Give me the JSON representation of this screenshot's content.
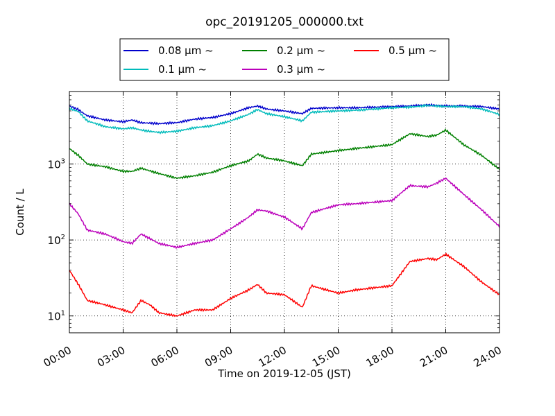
{
  "chart_data": {
    "type": "line",
    "title": "opc_20191205_000000.txt",
    "xlabel": "Time on 2019-12-05 (JST)",
    "ylabel": "Count / L",
    "x_unit": "hour of day",
    "xlim": [
      0,
      24
    ],
    "ylim": [
      6,
      9000
    ],
    "yscale": "log",
    "grid": true,
    "legend_position": "top-center",
    "x_ticks": [
      {
        "value": 0,
        "label": "00:00"
      },
      {
        "value": 3,
        "label": "03:00"
      },
      {
        "value": 6,
        "label": "06:00"
      },
      {
        "value": 9,
        "label": "09:00"
      },
      {
        "value": 12,
        "label": "12:00"
      },
      {
        "value": 15,
        "label": "15:00"
      },
      {
        "value": 18,
        "label": "18:00"
      },
      {
        "value": 21,
        "label": "21:00"
      },
      {
        "value": 24,
        "label": "24:00"
      }
    ],
    "y_ticks": [
      {
        "value": 10,
        "base": "10",
        "exp": "1"
      },
      {
        "value": 100,
        "base": "10",
        "exp": "2"
      },
      {
        "value": 1000,
        "base": "10",
        "exp": "3"
      }
    ],
    "series": [
      {
        "name": "0.08 μm ~",
        "color": "#0000cc",
        "x": [
          0,
          0.5,
          1,
          2,
          3,
          3.5,
          4,
          5,
          6,
          7,
          8,
          9,
          10,
          10.5,
          11,
          12,
          13,
          13.5,
          15,
          16,
          18,
          19,
          20,
          21,
          22,
          23,
          24
        ],
        "values": [
          5800,
          5200,
          4300,
          3800,
          3600,
          3800,
          3500,
          3400,
          3500,
          3900,
          4100,
          4600,
          5500,
          5800,
          5300,
          5000,
          4600,
          5400,
          5500,
          5500,
          5700,
          5800,
          6000,
          5800,
          5800,
          5700,
          5300
        ]
      },
      {
        "name": "0.1 μm ~",
        "color": "#00bbbb",
        "x": [
          0,
          0.5,
          1,
          2,
          3,
          3.5,
          4,
          5,
          6,
          7,
          8,
          9,
          10,
          10.5,
          11,
          12,
          13,
          13.5,
          15,
          16,
          18,
          19,
          20,
          21,
          22,
          23,
          24
        ],
        "values": [
          5400,
          4900,
          3700,
          3100,
          2900,
          3000,
          2800,
          2600,
          2700,
          3000,
          3200,
          3700,
          4500,
          5200,
          4600,
          4200,
          3700,
          4800,
          5000,
          5100,
          5500,
          5600,
          5900,
          5700,
          5700,
          5300,
          4500
        ]
      },
      {
        "name": "0.2 μm ~",
        "color": "#008000",
        "x": [
          0,
          0.5,
          1,
          2,
          3,
          3.5,
          4,
          5,
          6,
          7,
          8,
          9,
          10,
          10.5,
          11,
          12,
          13,
          13.5,
          15,
          16,
          18,
          19,
          20,
          20.5,
          21,
          22,
          23,
          24
        ],
        "values": [
          1600,
          1300,
          1000,
          920,
          800,
          800,
          880,
          750,
          650,
          700,
          780,
          950,
          1100,
          1350,
          1200,
          1100,
          950,
          1350,
          1500,
          1600,
          1800,
          2500,
          2300,
          2400,
          2800,
          1800,
          1300,
          850
        ]
      },
      {
        "name": "0.3 μm ~",
        "color": "#bb00bb",
        "x": [
          0,
          0.5,
          1,
          2,
          3,
          3.5,
          4,
          5,
          6,
          7,
          8,
          9,
          10,
          10.5,
          11,
          12,
          13,
          13.5,
          15,
          16,
          18,
          19,
          20,
          20.5,
          21,
          22,
          23,
          24
        ],
        "values": [
          300,
          220,
          135,
          120,
          95,
          90,
          120,
          90,
          80,
          90,
          100,
          140,
          200,
          250,
          240,
          200,
          140,
          230,
          290,
          300,
          330,
          520,
          500,
          560,
          650,
          400,
          250,
          150
        ]
      },
      {
        "name": "0.5 μm ~",
        "color": "#ff0000",
        "x": [
          0,
          0.5,
          1,
          2,
          3,
          3.5,
          4,
          4.5,
          5,
          6,
          7,
          8,
          9,
          10,
          10.5,
          11,
          12,
          13,
          13.5,
          15,
          16,
          18,
          19,
          20,
          20.5,
          21,
          22,
          23,
          24
        ],
        "values": [
          40,
          26,
          16,
          14,
          12,
          11,
          16,
          14,
          11,
          10,
          12,
          12,
          17,
          22,
          26,
          20,
          19,
          13,
          25,
          20,
          22,
          25,
          52,
          57,
          55,
          65,
          45,
          28,
          19
        ]
      }
    ]
  }
}
